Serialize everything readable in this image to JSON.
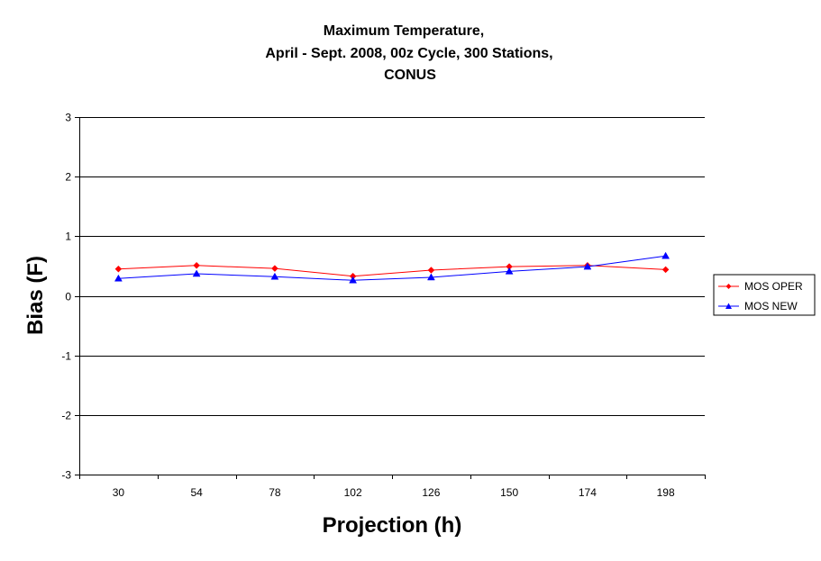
{
  "chart_data": {
    "type": "line",
    "title_lines": [
      "Maximum Temperature,",
      "April - Sept. 2008, 00z Cycle, 300 Stations,",
      "CONUS"
    ],
    "xlabel": "Projection (h)",
    "ylabel": "Bias (F)",
    "categories": [
      "30",
      "54",
      "78",
      "102",
      "126",
      "150",
      "174",
      "198"
    ],
    "ylim": [
      -3,
      3
    ],
    "yticks": [
      "3",
      "2",
      "1",
      "0",
      "-1",
      "-2",
      "-3"
    ],
    "grid": "horizontal major gridlines",
    "legend_position": "right",
    "series": [
      {
        "name": "MOS OPER",
        "color": "#ff0000",
        "marker": "diamond",
        "values": [
          0.45,
          0.51,
          0.46,
          0.33,
          0.43,
          0.49,
          0.51,
          0.44
        ]
      },
      {
        "name": "MOS NEW",
        "color": "#0000ff",
        "marker": "triangle",
        "values": [
          0.29,
          0.37,
          0.32,
          0.26,
          0.31,
          0.41,
          0.49,
          0.67
        ]
      }
    ]
  }
}
